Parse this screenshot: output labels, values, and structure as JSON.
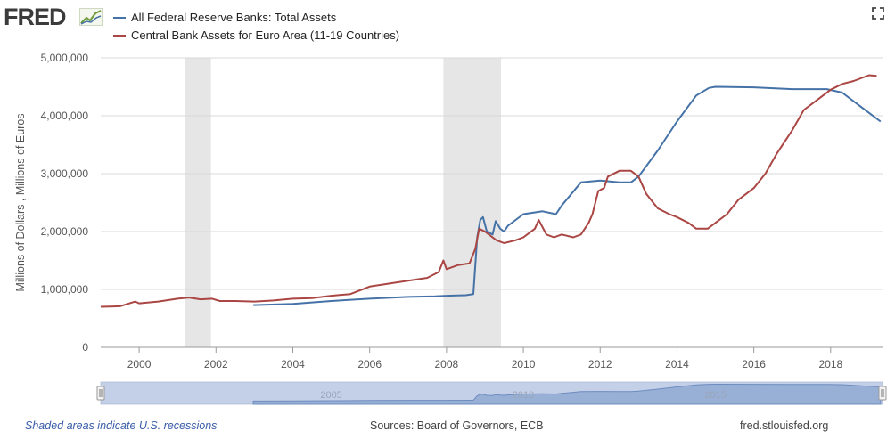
{
  "header": {
    "logo_text": "FRED",
    "logo_icon": "chart-line-icon",
    "fullscreen_icon": "fullscreen-icon"
  },
  "legend": [
    {
      "label": "All Federal Reserve Banks: Total Assets",
      "color": "#4572a7"
    },
    {
      "label": "Central Bank Assets for Euro Area (11-19 Countries)",
      "color": "#aa4643"
    }
  ],
  "footer": {
    "note": "Shaded areas indicate U.S. recessions",
    "sources": "Sources: Board of Governors, ECB",
    "url": "fred.stlouisfed.org"
  },
  "navigator": {
    "labels": [
      "2005",
      "2010",
      "2015"
    ]
  },
  "chart_data": {
    "type": "line",
    "ylabel": "Millions of Dollars , Millions of Euros",
    "xlim": [
      1999.0,
      2019.35
    ],
    "ylim": [
      0,
      5000000
    ],
    "y_ticks": [
      0,
      1000000,
      2000000,
      3000000,
      4000000,
      5000000
    ],
    "y_tick_labels": [
      "0",
      "1,000,000",
      "2,000,000",
      "3,000,000",
      "4,000,000",
      "5,000,000"
    ],
    "x_ticks": [
      2000,
      2002,
      2004,
      2006,
      2008,
      2010,
      2012,
      2014,
      2016,
      2018
    ],
    "x_tick_labels": [
      "2000",
      "2002",
      "2004",
      "2006",
      "2008",
      "2010",
      "2012",
      "2014",
      "2016",
      "2018"
    ],
    "recessions": [
      [
        2001.2,
        2001.87
      ],
      [
        2007.92,
        2009.42
      ]
    ],
    "grid": true,
    "series": [
      {
        "name": "All Federal Reserve Banks: Total Assets",
        "color": "#4572a7",
        "points": [
          [
            2002.97,
            730000
          ],
          [
            2004.0,
            750000
          ],
          [
            2005.0,
            800000
          ],
          [
            2006.0,
            840000
          ],
          [
            2007.0,
            870000
          ],
          [
            2007.7,
            880000
          ],
          [
            2008.0,
            890000
          ],
          [
            2008.5,
            900000
          ],
          [
            2008.7,
            920000
          ],
          [
            2008.8,
            1900000
          ],
          [
            2008.88,
            2200000
          ],
          [
            2008.95,
            2250000
          ],
          [
            2009.05,
            2000000
          ],
          [
            2009.2,
            1950000
          ],
          [
            2009.28,
            2180000
          ],
          [
            2009.4,
            2050000
          ],
          [
            2009.5,
            2000000
          ],
          [
            2009.6,
            2100000
          ],
          [
            2010.0,
            2300000
          ],
          [
            2010.5,
            2350000
          ],
          [
            2010.85,
            2300000
          ],
          [
            2011.0,
            2450000
          ],
          [
            2011.5,
            2850000
          ],
          [
            2012.0,
            2880000
          ],
          [
            2012.5,
            2850000
          ],
          [
            2012.8,
            2850000
          ],
          [
            2013.0,
            2950000
          ],
          [
            2013.5,
            3400000
          ],
          [
            2014.0,
            3900000
          ],
          [
            2014.5,
            4350000
          ],
          [
            2014.83,
            4480000
          ],
          [
            2015.0,
            4500000
          ],
          [
            2016.0,
            4490000
          ],
          [
            2017.0,
            4460000
          ],
          [
            2017.5,
            4460000
          ],
          [
            2017.9,
            4460000
          ],
          [
            2018.3,
            4400000
          ],
          [
            2018.8,
            4150000
          ],
          [
            2019.3,
            3900000
          ]
        ]
      },
      {
        "name": "Central Bank Assets for Euro Area (11-19 Countries)",
        "color": "#aa4643",
        "points": [
          [
            1999.0,
            700000
          ],
          [
            1999.5,
            710000
          ],
          [
            1999.9,
            790000
          ],
          [
            2000.0,
            760000
          ],
          [
            2000.5,
            790000
          ],
          [
            2001.0,
            840000
          ],
          [
            2001.3,
            860000
          ],
          [
            2001.6,
            830000
          ],
          [
            2001.9,
            840000
          ],
          [
            2002.1,
            800000
          ],
          [
            2002.5,
            800000
          ],
          [
            2003.0,
            790000
          ],
          [
            2003.5,
            810000
          ],
          [
            2004.0,
            840000
          ],
          [
            2004.5,
            850000
          ],
          [
            2005.0,
            890000
          ],
          [
            2005.5,
            920000
          ],
          [
            2006.0,
            1050000
          ],
          [
            2006.5,
            1100000
          ],
          [
            2007.0,
            1150000
          ],
          [
            2007.5,
            1200000
          ],
          [
            2007.8,
            1300000
          ],
          [
            2007.92,
            1500000
          ],
          [
            2008.0,
            1350000
          ],
          [
            2008.3,
            1420000
          ],
          [
            2008.6,
            1450000
          ],
          [
            2008.75,
            1700000
          ],
          [
            2008.85,
            2050000
          ],
          [
            2009.0,
            2000000
          ],
          [
            2009.3,
            1850000
          ],
          [
            2009.5,
            1800000
          ],
          [
            2009.8,
            1850000
          ],
          [
            2010.0,
            1900000
          ],
          [
            2010.3,
            2050000
          ],
          [
            2010.4,
            2200000
          ],
          [
            2010.6,
            1950000
          ],
          [
            2010.8,
            1900000
          ],
          [
            2011.0,
            1950000
          ],
          [
            2011.3,
            1900000
          ],
          [
            2011.5,
            1950000
          ],
          [
            2011.7,
            2150000
          ],
          [
            2011.8,
            2300000
          ],
          [
            2011.95,
            2700000
          ],
          [
            2012.1,
            2750000
          ],
          [
            2012.2,
            2950000
          ],
          [
            2012.5,
            3050000
          ],
          [
            2012.8,
            3050000
          ],
          [
            2013.0,
            2950000
          ],
          [
            2013.2,
            2650000
          ],
          [
            2013.5,
            2400000
          ],
          [
            2013.8,
            2300000
          ],
          [
            2014.0,
            2250000
          ],
          [
            2014.3,
            2150000
          ],
          [
            2014.5,
            2050000
          ],
          [
            2014.8,
            2050000
          ],
          [
            2015.0,
            2150000
          ],
          [
            2015.3,
            2300000
          ],
          [
            2015.6,
            2550000
          ],
          [
            2016.0,
            2750000
          ],
          [
            2016.3,
            3000000
          ],
          [
            2016.6,
            3350000
          ],
          [
            2017.0,
            3750000
          ],
          [
            2017.3,
            4100000
          ],
          [
            2017.6,
            4250000
          ],
          [
            2018.0,
            4450000
          ],
          [
            2018.3,
            4550000
          ],
          [
            2018.6,
            4600000
          ],
          [
            2019.0,
            4700000
          ],
          [
            2019.2,
            4690000
          ]
        ]
      }
    ]
  }
}
